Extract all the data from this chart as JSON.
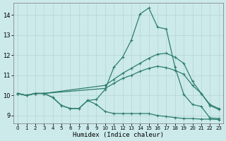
{
  "xlabel": "Humidex (Indice chaleur)",
  "bg_color": "#cceaea",
  "line_color": "#2e7d6e",
  "grid_color": "#b8d8d8",
  "xlim": [
    -0.5,
    23.5
  ],
  "ylim": [
    8.6,
    14.6
  ],
  "xticks": [
    0,
    1,
    2,
    3,
    4,
    5,
    6,
    7,
    8,
    9,
    10,
    11,
    12,
    13,
    14,
    15,
    16,
    17,
    18,
    19,
    20,
    21,
    22,
    23
  ],
  "yticks": [
    9,
    10,
    11,
    12,
    13,
    14
  ],
  "series": [
    {
      "x": [
        0,
        1,
        2,
        3,
        4,
        5,
        6,
        7,
        8,
        9,
        10,
        11,
        12,
        13,
        14,
        15,
        16,
        17,
        18,
        19,
        20,
        21,
        22,
        23
      ],
      "y": [
        10.1,
        10.0,
        10.1,
        10.1,
        9.9,
        9.5,
        9.35,
        9.35,
        9.75,
        9.8,
        10.3,
        11.4,
        11.9,
        12.75,
        14.05,
        14.35,
        13.4,
        13.3,
        11.4,
        10.05,
        9.55,
        9.45,
        8.88,
        8.85
      ]
    },
    {
      "x": [
        0,
        1,
        2,
        3,
        10,
        11,
        12,
        13,
        14,
        15,
        16,
        17,
        18,
        19,
        20,
        21,
        22,
        23
      ],
      "y": [
        10.1,
        10.0,
        10.1,
        10.1,
        10.5,
        10.8,
        11.1,
        11.35,
        11.6,
        11.85,
        12.05,
        12.1,
        11.9,
        11.6,
        10.7,
        10.1,
        9.55,
        9.35
      ]
    },
    {
      "x": [
        0,
        1,
        2,
        3,
        10,
        11,
        12,
        13,
        14,
        15,
        16,
        17,
        18,
        19,
        20,
        21,
        22,
        23
      ],
      "y": [
        10.1,
        10.0,
        10.1,
        10.1,
        10.35,
        10.6,
        10.85,
        11.0,
        11.2,
        11.35,
        11.45,
        11.38,
        11.25,
        11.05,
        10.5,
        10.1,
        9.5,
        9.3
      ]
    },
    {
      "x": [
        0,
        1,
        2,
        3,
        4,
        5,
        6,
        7,
        8,
        9,
        10,
        11,
        12,
        13,
        14,
        15,
        16,
        17,
        18,
        19,
        20,
        21,
        22,
        23
      ],
      "y": [
        10.1,
        10.0,
        10.1,
        10.1,
        9.9,
        9.5,
        9.35,
        9.35,
        9.75,
        9.55,
        9.2,
        9.1,
        9.1,
        9.1,
        9.1,
        9.1,
        9.0,
        8.95,
        8.9,
        8.85,
        8.85,
        8.82,
        8.82,
        8.8
      ]
    }
  ]
}
